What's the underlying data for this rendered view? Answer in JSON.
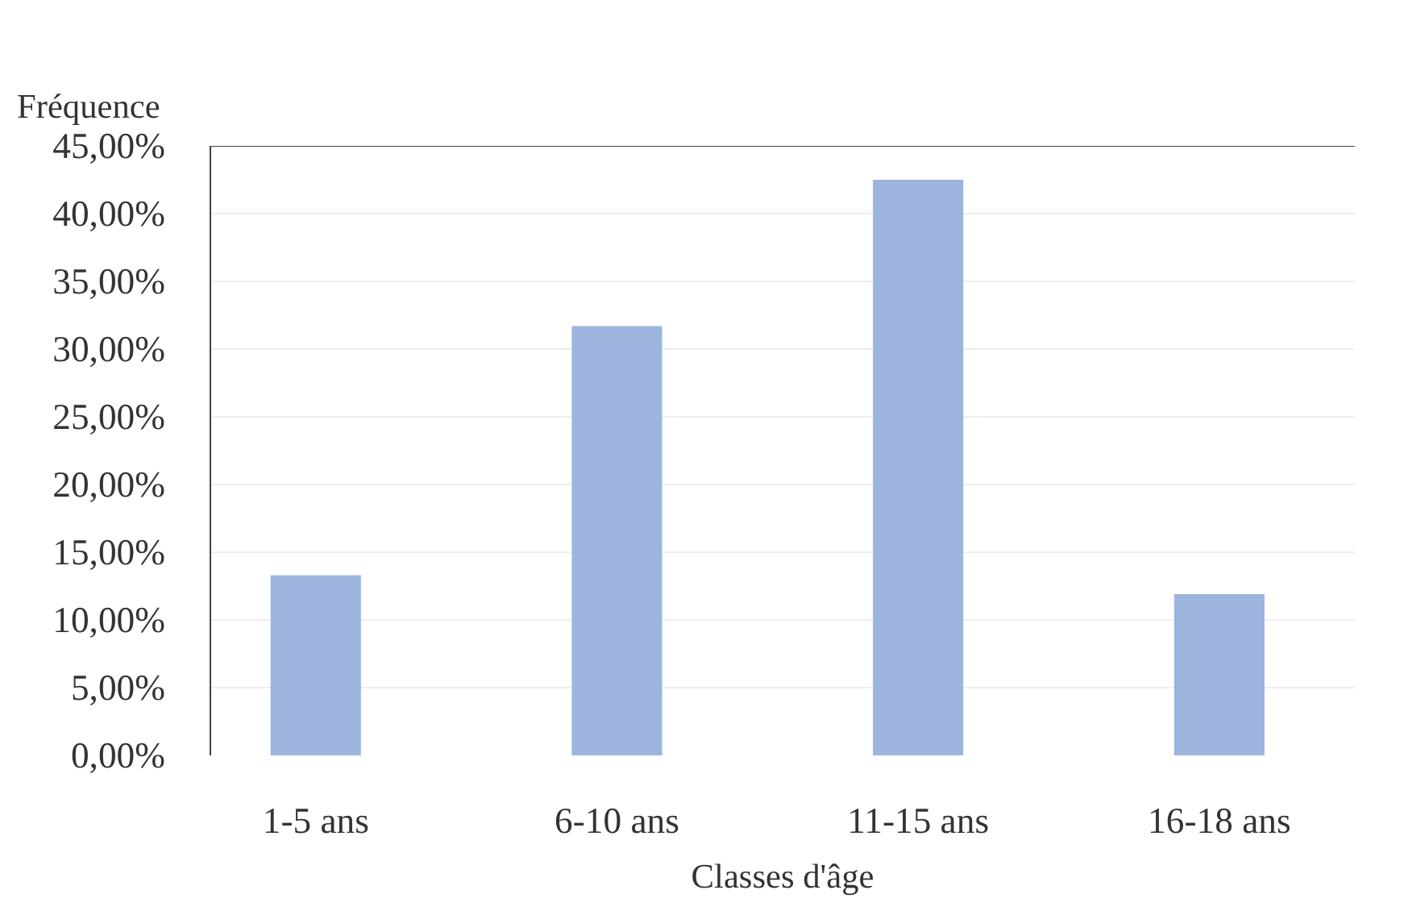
{
  "chart_data": {
    "type": "bar",
    "ylabel": "Fréquence",
    "xlabel": "Classes d'âge",
    "categories": [
      "1-5 ans",
      "6-10 ans",
      "11-15 ans",
      "16-18 ans"
    ],
    "values": [
      13.3,
      31.7,
      42.5,
      11.9
    ],
    "color": "#9cb4de",
    "ylim": [
      0,
      45
    ],
    "yticks": [
      {
        "value": 0,
        "label": "0,00%"
      },
      {
        "value": 5,
        "label": "5,00%"
      },
      {
        "value": 10,
        "label": "10,00%"
      },
      {
        "value": 15,
        "label": "15,00%"
      },
      {
        "value": 20,
        "label": "20,00%"
      },
      {
        "value": 25,
        "label": "25,00%"
      },
      {
        "value": 30,
        "label": "30,00%"
      },
      {
        "value": 35,
        "label": "35,00%"
      },
      {
        "value": 40,
        "label": "40,00%"
      },
      {
        "value": 45,
        "label": "45,00%"
      }
    ],
    "grid": "y"
  }
}
